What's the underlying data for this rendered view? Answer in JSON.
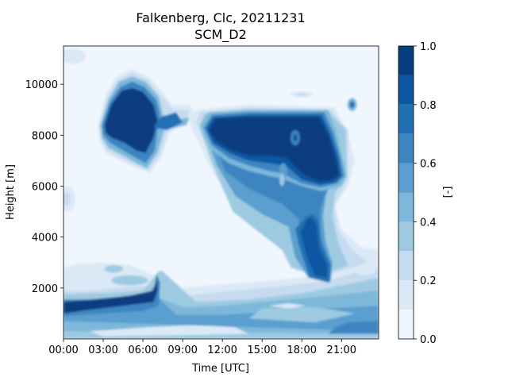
{
  "chart_data": {
    "type": "heatmap",
    "title": "Falkenberg, Clc, 20211231",
    "subtitle": "SCM_D2",
    "xlabel": "Time [UTC]",
    "ylabel": "Height [m]",
    "x_ticks": [
      "00:00",
      "03:00",
      "06:00",
      "09:00",
      "12:00",
      "15:00",
      "18:00",
      "21:00"
    ],
    "x_tick_hours": [
      0,
      3,
      6,
      9,
      12,
      15,
      18,
      21
    ],
    "xlim_hours": [
      0,
      23.8
    ],
    "y_ticks": [
      2000,
      4000,
      6000,
      8000,
      10000
    ],
    "ylim": [
      0,
      11500
    ],
    "colorbar": {
      "label": "[-]",
      "range": [
        0,
        1
      ],
      "levels": [
        0.0,
        0.1,
        0.2,
        0.3,
        0.4,
        0.5,
        0.6,
        0.7,
        0.8,
        0.9,
        1.0
      ],
      "tick_labels": [
        "0.0",
        "0.2",
        "0.4",
        "0.6",
        "0.8",
        "1.0"
      ],
      "tick_values": [
        0.0,
        0.2,
        0.4,
        0.6,
        0.8,
        1.0
      ],
      "colors": [
        "#f0f6fd",
        "#dbe9f6",
        "#c6dbef",
        "#9ecae1",
        "#7db8da",
        "#5a9fcf",
        "#3c85c1",
        "#2070b4",
        "#0d57a1",
        "#083e81"
      ]
    },
    "features": [
      {
        "name": "upper cloud left",
        "time_start": 2.8,
        "time_end": 8.0,
        "height_min": 6600,
        "height_max": 10500,
        "max_value": 1.0
      },
      {
        "name": "upper cloud right",
        "time_start": 10.0,
        "time_end": 21.5,
        "height_min": 5800,
        "height_max": 9000,
        "max_value": 1.0
      },
      {
        "name": "mid-level layer",
        "time_start": 10.5,
        "time_end": 20.0,
        "height_min": 2800,
        "height_max": 6500,
        "max_value": 0.7
      },
      {
        "name": "descending column",
        "time_start": 17.3,
        "time_end": 20.3,
        "height_min": 2100,
        "height_max": 4800,
        "max_value": 0.9
      },
      {
        "name": "low-level layer",
        "time_start": 0.0,
        "time_end": 23.8,
        "height_min": 0,
        "height_max": 2600,
        "max_value": 1.0
      }
    ]
  }
}
